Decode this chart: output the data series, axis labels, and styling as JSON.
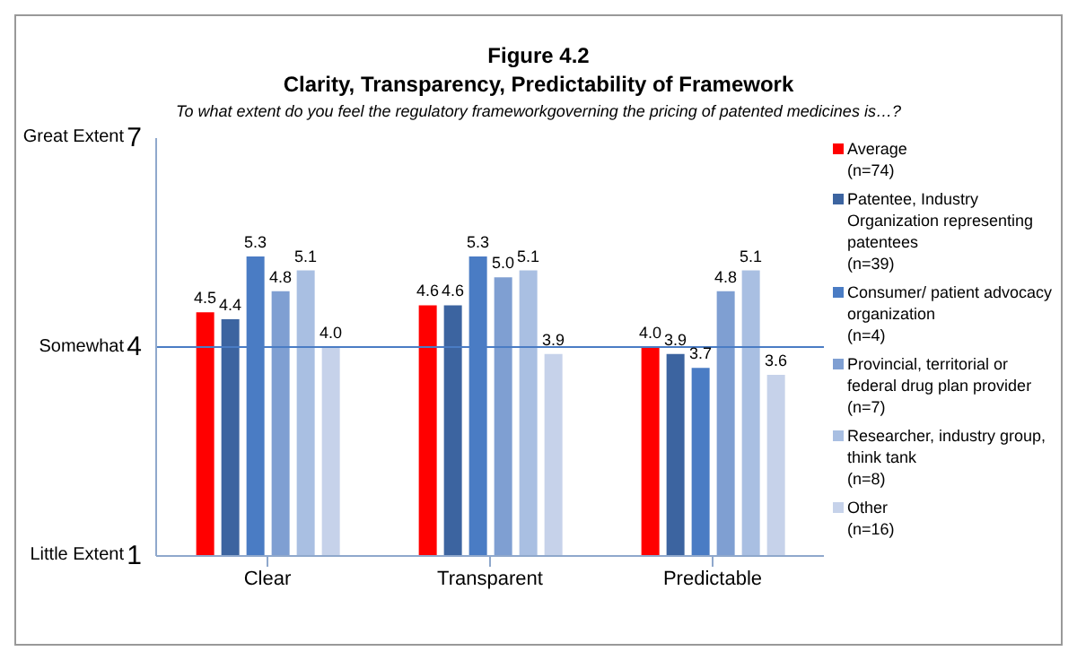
{
  "chart_data": {
    "type": "bar",
    "title": "Figure 4.2\nClarity, Transparency, Predictability of Framework",
    "subtitle": "To what extent do you feel the regulatory frameworkgoverning the pricing of patented medicines is…?",
    "categories": [
      "Clear",
      "Transparent",
      "Predictable"
    ],
    "series": [
      {
        "name": "Average\n(n=74)",
        "color": "#ff0000",
        "values": [
          4.5,
          4.6,
          4.0
        ],
        "value_labels": [
          "4.5",
          "4.6",
          "4.0"
        ]
      },
      {
        "name": "Patentee, Industry Organization representing patentees\n(n=39)",
        "color": "#3c64a0",
        "values": [
          4.4,
          4.6,
          3.9
        ],
        "value_labels": [
          "4.4",
          "4.6",
          "3.9"
        ]
      },
      {
        "name": "Consumer/  patient advocacy organization\n(n=4)",
        "color": "#4a7cc4",
        "values": [
          5.3,
          5.3,
          3.7
        ],
        "value_labels": [
          "5.3",
          "5.3",
          "3.7"
        ]
      },
      {
        "name": "Provincial, territorial or federal drug plan  provider\n(n=7)",
        "color": "#7f9fd2",
        "values": [
          4.8,
          5.0,
          4.8
        ],
        "value_labels": [
          "4.8",
          "5.0",
          "4.8"
        ]
      },
      {
        "name": "Researcher, industry group, think tank\n(n=8)",
        "color": "#a9bfe2",
        "values": [
          5.1,
          5.1,
          5.1
        ],
        "value_labels": [
          "5.1",
          "5.1",
          "5.1"
        ]
      },
      {
        "name": "Other\n(n=16)",
        "color": "#c6d2ea",
        "values": [
          4.0,
          3.9,
          3.6
        ],
        "value_labels": [
          "4.0",
          "3.9",
          "3.6"
        ]
      }
    ],
    "ylim": [
      1,
      7
    ],
    "yticks": [
      1,
      4,
      7
    ],
    "annotations": [
      "Great Extent",
      "Somewhat",
      "Little Extent"
    ],
    "ref_lines": [
      {
        "axis": "y",
        "value": 4,
        "color": "#4a7cc4"
      }
    ],
    "grid": false,
    "legend": "right"
  }
}
